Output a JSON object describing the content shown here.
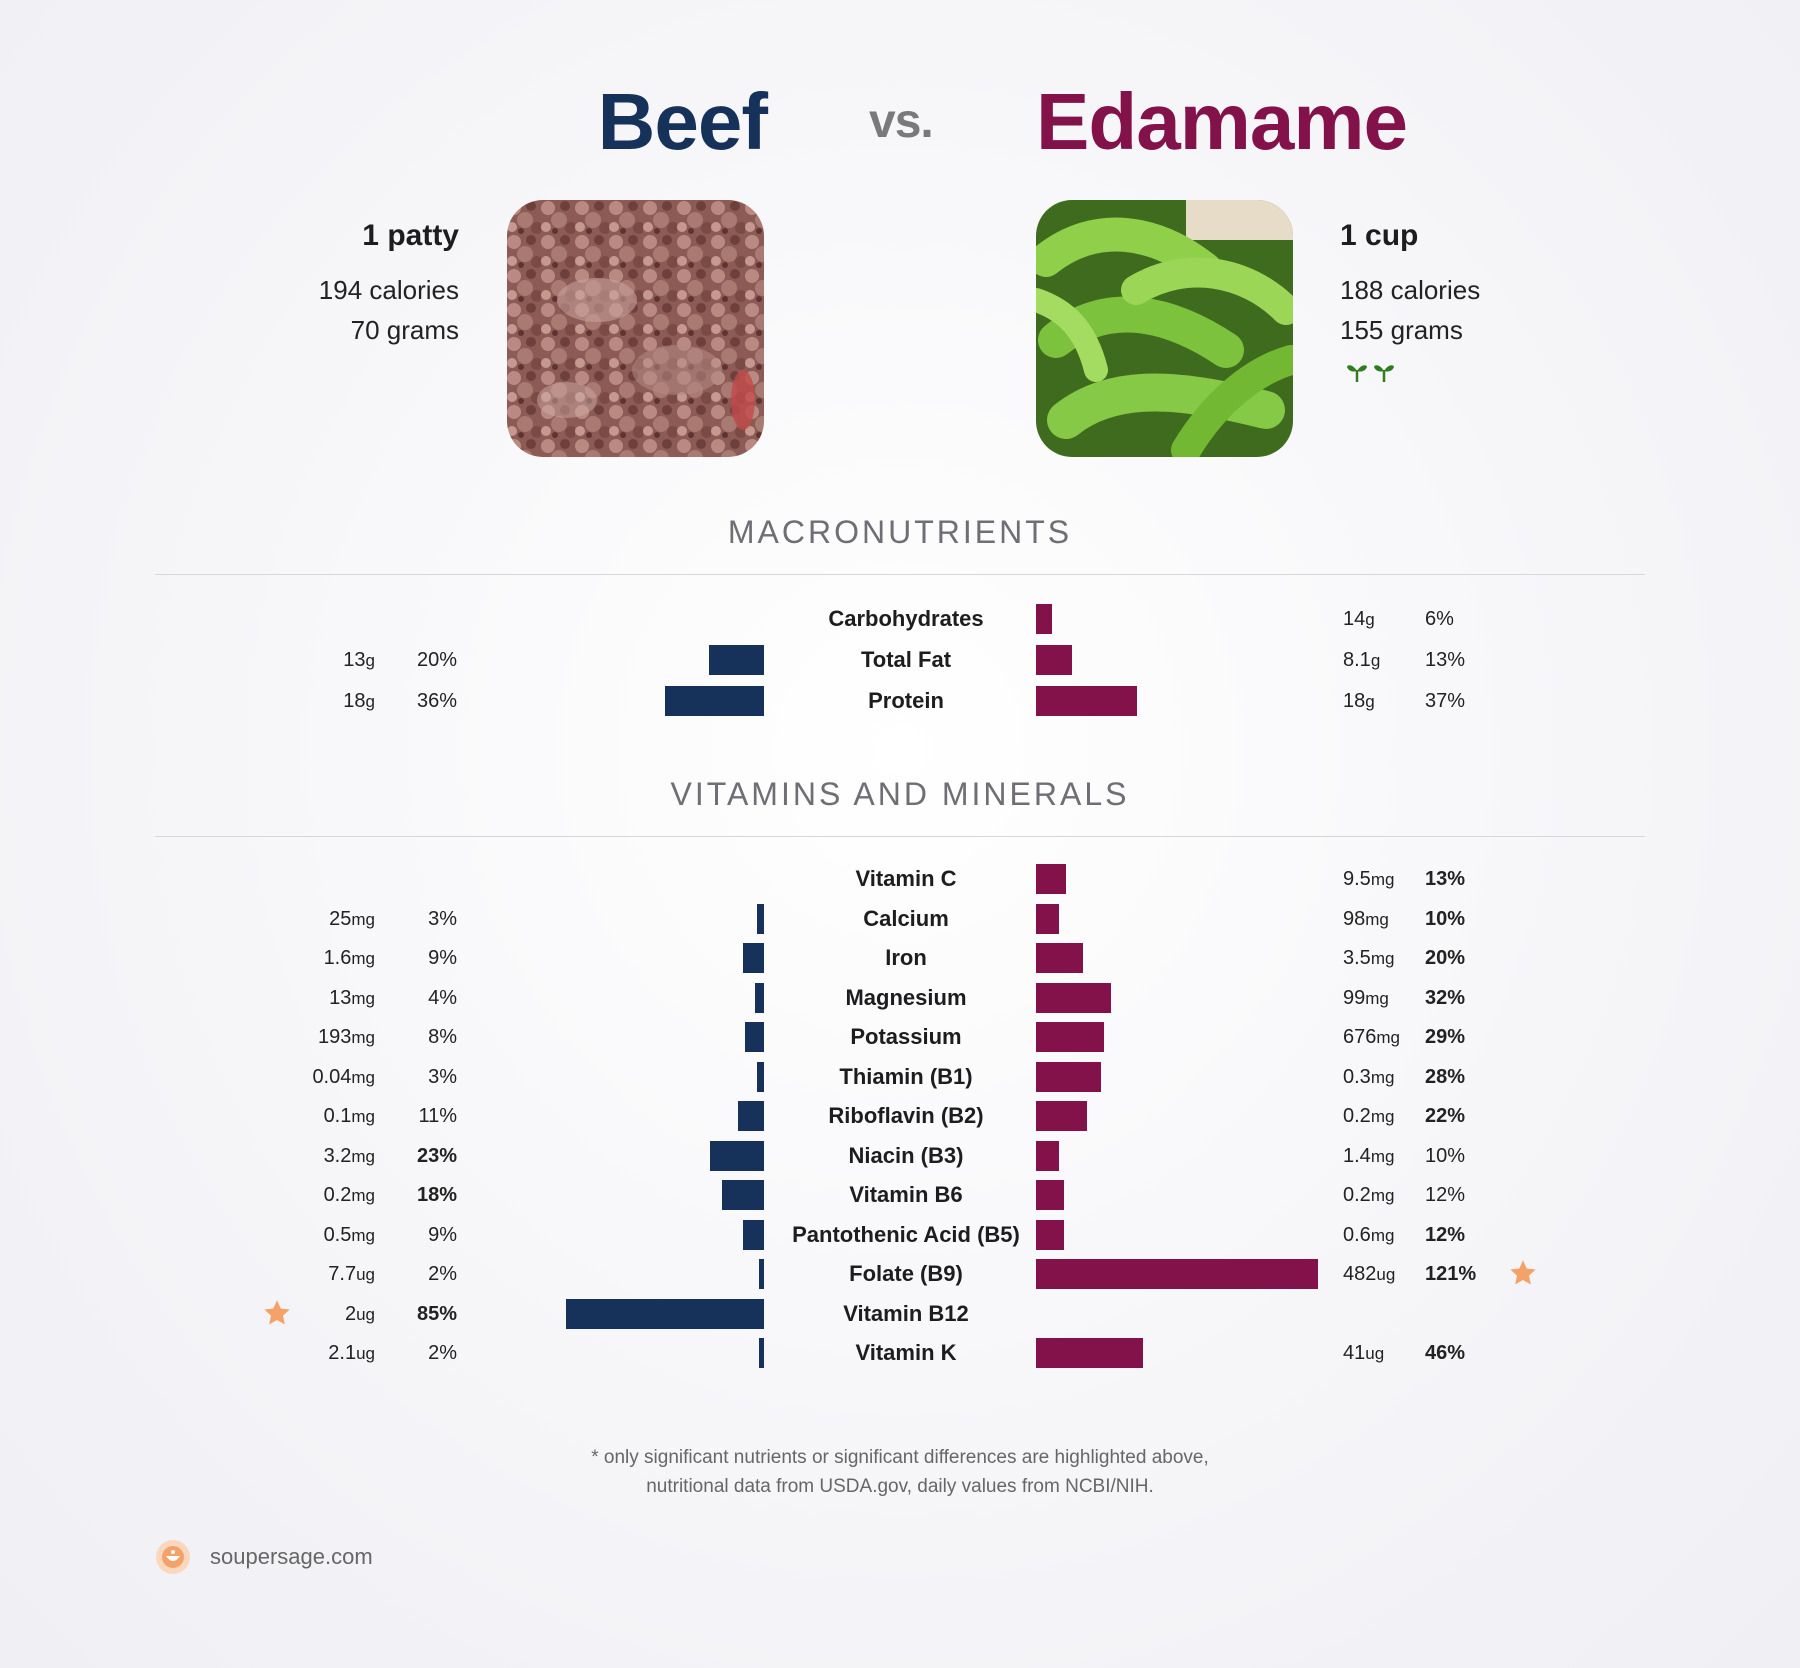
{
  "header": {
    "left_title": "Beef",
    "vs_label": "vs.",
    "right_title": "Edamame"
  },
  "foods": {
    "left": {
      "serving": "1 patty",
      "calories": "194 calories",
      "grams": "70 grams",
      "image_icon": "ground-beef-photo"
    },
    "right": {
      "serving": "1 cup",
      "calories": "188 calories",
      "grams": "155 grams",
      "image_icon": "edamame-photo",
      "badge_icon": "vegan-sprouts-icon"
    }
  },
  "colors": {
    "beef": "#16325a",
    "edamame": "#83124a",
    "star": "#f4a26a"
  },
  "sections": {
    "macros_title": "MACRONUTRIENTS",
    "vitamins_title": "VITAMINS AND MINERALS"
  },
  "chart_data": [
    {
      "type": "bar",
      "categories": [
        "Carbohydrates",
        "Total Fat",
        "Protein"
      ],
      "series": [
        {
          "name": "Beef",
          "amounts": [
            null,
            "13",
            "18"
          ],
          "units": [
            null,
            "g",
            "g"
          ],
          "percent_labels": [
            null,
            "20%",
            "36%"
          ],
          "percent_values": [
            0,
            20,
            36
          ],
          "bold": [
            false,
            false,
            false
          ]
        },
        {
          "name": "Edamame",
          "amounts": [
            "14",
            "8.1",
            "18"
          ],
          "units": [
            "g",
            "g",
            "g"
          ],
          "percent_labels": [
            "6%",
            "13%",
            "37%"
          ],
          "percent_values": [
            6,
            13,
            37
          ],
          "bold": [
            false,
            false,
            false
          ]
        }
      ]
    },
    {
      "type": "bar",
      "categories": [
        "Vitamin C",
        "Calcium",
        "Iron",
        "Magnesium",
        "Potassium",
        "Thiamin (B1)",
        "Riboflavin (B2)",
        "Niacin (B3)",
        "Vitamin B6",
        "Pantothenic Acid (B5)",
        "Folate (B9)",
        "Vitamin B12",
        "Vitamin K"
      ],
      "series": [
        {
          "name": "Beef",
          "amounts": [
            null,
            "25",
            "1.6",
            "13",
            "193",
            "0.04",
            "0.1",
            "3.2",
            "0.2",
            "0.5",
            "7.7",
            "2",
            "2.1"
          ],
          "units": [
            null,
            "mg",
            "mg",
            "mg",
            "mg",
            "mg",
            "mg",
            "mg",
            "mg",
            "mg",
            "ug",
            "ug",
            "ug"
          ],
          "percent_labels": [
            null,
            "3%",
            "9%",
            "4%",
            "8%",
            "3%",
            "11%",
            "23%",
            "18%",
            "9%",
            "2%",
            "85%",
            "2%"
          ],
          "percent_values": [
            0,
            3,
            9,
            4,
            8,
            3,
            11,
            23,
            18,
            9,
            2,
            85,
            2
          ],
          "bold": [
            false,
            false,
            false,
            false,
            false,
            false,
            false,
            true,
            true,
            false,
            false,
            true,
            false
          ],
          "star": [
            false,
            false,
            false,
            false,
            false,
            false,
            false,
            false,
            false,
            false,
            false,
            true,
            false
          ]
        },
        {
          "name": "Edamame",
          "amounts": [
            "9.5",
            "98",
            "3.5",
            "99",
            "676",
            "0.3",
            "0.2",
            "1.4",
            "0.2",
            "0.6",
            "482",
            null,
            "41"
          ],
          "units": [
            "mg",
            "mg",
            "mg",
            "mg",
            "mg",
            "mg",
            "mg",
            "mg",
            "mg",
            "mg",
            "ug",
            null,
            "ug"
          ],
          "percent_labels": [
            "13%",
            "10%",
            "20%",
            "32%",
            "29%",
            "28%",
            "22%",
            "10%",
            "12%",
            "12%",
            "121%",
            null,
            "46%"
          ],
          "percent_values": [
            13,
            10,
            20,
            32,
            29,
            28,
            22,
            10,
            12,
            12,
            121,
            0,
            46
          ],
          "bold": [
            true,
            true,
            true,
            true,
            true,
            true,
            true,
            false,
            false,
            true,
            true,
            false,
            true
          ],
          "star": [
            false,
            false,
            false,
            false,
            false,
            false,
            false,
            false,
            false,
            false,
            true,
            false,
            false
          ]
        }
      ]
    }
  ],
  "footnote": {
    "line1": "* only significant nutrients or significant differences are highlighted above,",
    "line2": "nutritional data from USDA.gov, daily values from NCBI/NIH."
  },
  "brand": {
    "name": "soupersage.com",
    "logo_icon": "soupersage-logo-icon"
  }
}
